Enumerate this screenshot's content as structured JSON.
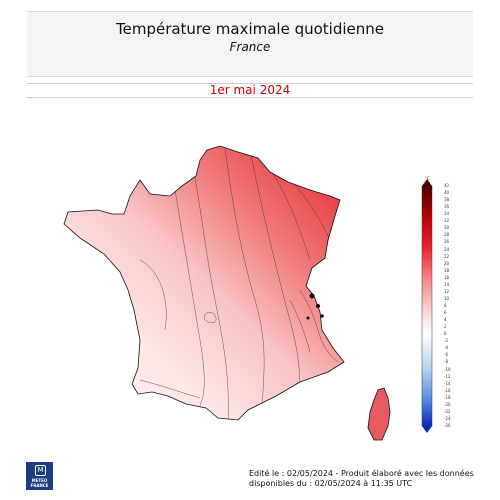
{
  "header": {
    "title": "Température maximale quotidienne",
    "subtitle": "France"
  },
  "date_label": "1er mai 2024",
  "legend": {
    "unit": "°C",
    "ticks": [
      "42",
      "40",
      "38",
      "36",
      "34",
      "32",
      "30",
      "28",
      "26",
      "24",
      "22",
      "20",
      "18",
      "16",
      "14",
      "12",
      "10",
      "8",
      "6",
      "4",
      "2",
      "0",
      "-2",
      "-4",
      "-6",
      "-8",
      "-10",
      "-12",
      "-14",
      "-16",
      "-18",
      "-20",
      "-22",
      "-24",
      "-26"
    ],
    "colors": {
      "max": "#4a0000",
      "hot": "#e8202a",
      "warm": "#f7a9a9",
      "mild": "#fbe4e4",
      "neutral": "#ffffff",
      "cold": "#7fb4e8",
      "min": "#0a2bb8"
    }
  },
  "logo": {
    "mark": "M",
    "name_line1": "METEO",
    "name_line2": "FRANCE"
  },
  "footer": {
    "line1": "Edité le : 02/05/2024 - Produit élaboré avec les données",
    "line2": "disponibles du : 02/05/2024 à 11:35 UTC"
  }
}
